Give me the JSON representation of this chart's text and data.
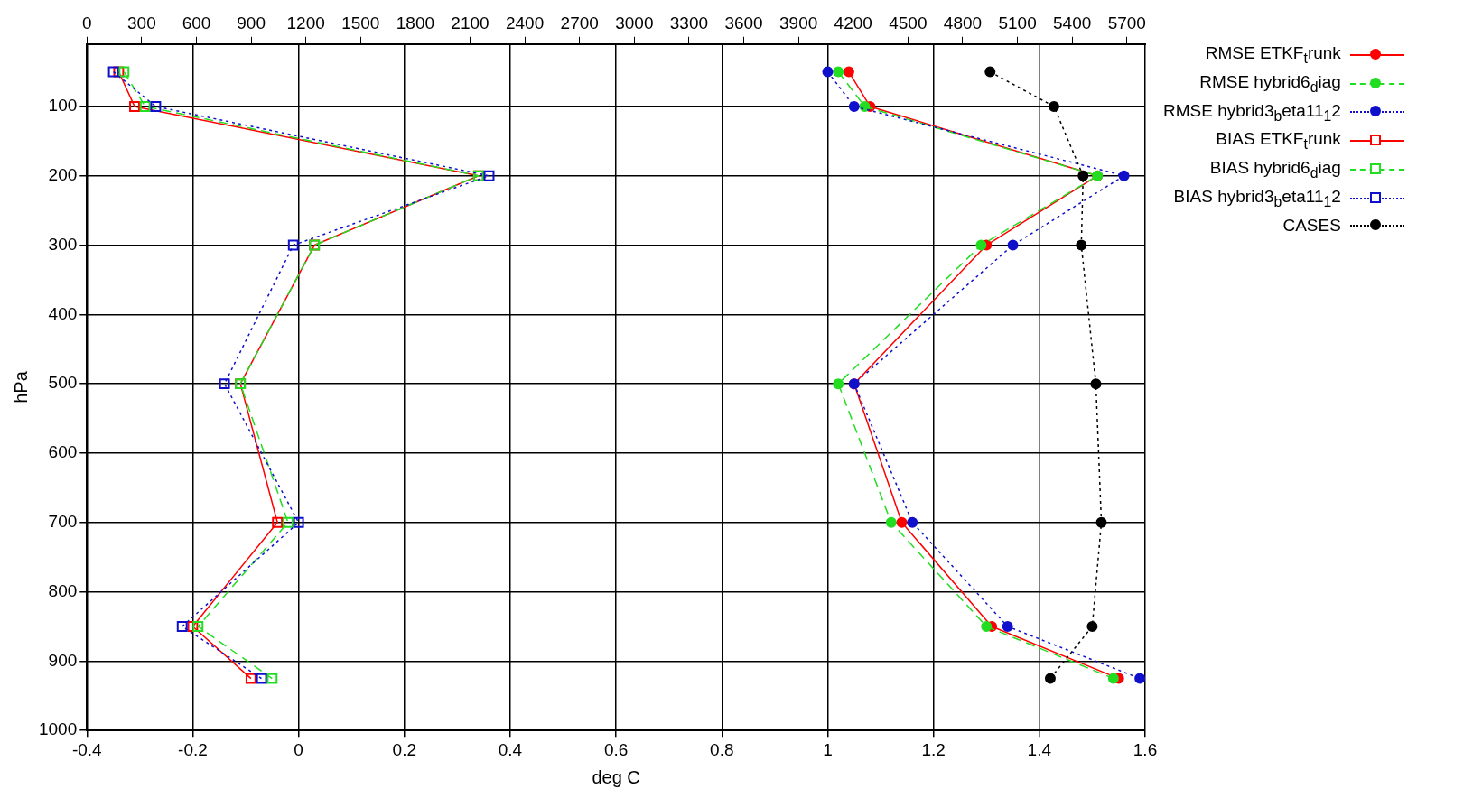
{
  "chart_data": {
    "type": "line",
    "xlabel": "deg C",
    "ylabel": "hPa",
    "xlim": [
      -0.4,
      1.6
    ],
    "xticks": [
      -0.4,
      -0.2,
      0,
      0.2,
      0.4,
      0.6,
      0.8,
      1,
      1.2,
      1.4,
      1.6
    ],
    "x2lim": [
      0,
      5800
    ],
    "x2ticks": [
      0,
      300,
      600,
      900,
      1200,
      1500,
      1800,
      2100,
      2400,
      2700,
      3000,
      3300,
      3600,
      3900,
      4200,
      4500,
      4800,
      5100,
      5400,
      5700
    ],
    "ylim": [
      1000,
      10
    ],
    "yticks": [
      100,
      200,
      300,
      400,
      500,
      600,
      700,
      800,
      900,
      1000
    ],
    "grid": true,
    "legend": "top right",
    "series": [
      {
        "name": "RMSE ETKF$_{t}$runk",
        "color": "#ff0000",
        "marker": "circle",
        "line_style": "solid",
        "x": [
          1.04,
          1.08,
          1.51,
          1.3,
          1.05,
          1.14,
          1.31,
          1.55
        ],
        "values": [
          50,
          100,
          200,
          300,
          500,
          700,
          850,
          925
        ]
      },
      {
        "name": "RMSE hybrid6$_{d}$iag",
        "color": "#22dd22",
        "marker": "circle",
        "line_style": "dashed",
        "x": [
          1.02,
          1.07,
          1.51,
          1.29,
          1.02,
          1.12,
          1.3,
          1.54
        ],
        "values": [
          50,
          100,
          200,
          300,
          500,
          700,
          850,
          925
        ]
      },
      {
        "name": "RMSE hybrid3$_{b}$eta11$_{1}$2",
        "color": "#1010cc",
        "marker": "circle",
        "line_style": "dotted",
        "x": [
          1.0,
          1.05,
          1.56,
          1.35,
          1.05,
          1.16,
          1.34,
          1.59
        ],
        "values": [
          50,
          100,
          200,
          300,
          500,
          700,
          850,
          925
        ]
      },
      {
        "name": "BIAS ETKF$_{t}$runk",
        "color": "#ff0000",
        "marker": "square",
        "line_style": "solid",
        "x": [
          -0.34,
          -0.31,
          0.34,
          0.03,
          -0.11,
          -0.04,
          -0.2,
          -0.09
        ],
        "values": [
          50,
          100,
          200,
          300,
          500,
          700,
          850,
          925
        ]
      },
      {
        "name": "BIAS hybrid6$_{d}$iag",
        "color": "#22dd22",
        "marker": "square",
        "line_style": "dashed",
        "x": [
          -0.33,
          -0.29,
          0.34,
          0.03,
          -0.11,
          -0.02,
          -0.19,
          -0.05
        ],
        "values": [
          50,
          100,
          200,
          300,
          500,
          700,
          850,
          925
        ]
      },
      {
        "name": "BIAS hybrid3$_{b}$eta11$_{1}$2",
        "color": "#1010cc",
        "marker": "square",
        "line_style": "dotted",
        "x": [
          -0.35,
          -0.27,
          0.36,
          -0.01,
          -0.14,
          0.0,
          -0.22,
          -0.07
        ],
        "values": [
          50,
          100,
          200,
          300,
          500,
          700,
          850,
          925
        ]
      },
      {
        "name": "CASES",
        "color": "#000000",
        "marker": "circle",
        "line_style": "dotted",
        "axis": "x2",
        "x": [
          4950,
          5300,
          5460,
          5450,
          5530,
          5560,
          5510,
          5280
        ],
        "values": [
          50,
          100,
          200,
          300,
          500,
          700,
          850,
          925
        ]
      }
    ]
  }
}
